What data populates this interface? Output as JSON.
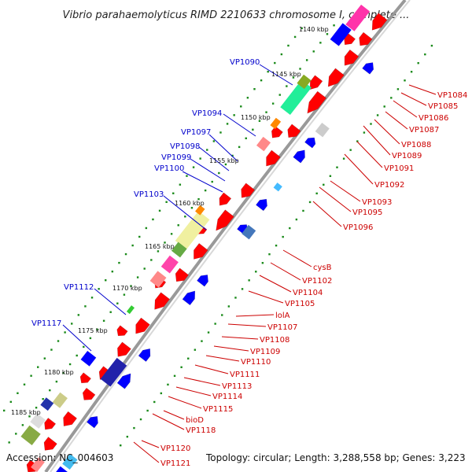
{
  "title": "Vibrio parahaemolyticus RIMD 2210633 chromosome I, complete ...",
  "footer": {
    "accession": "Accession: NC_004603",
    "topology": "Topology: circular; Length: 3,288,558 bp; Genes: 3,223"
  },
  "colors": {
    "forward_label": "#cc0000",
    "reverse_label": "#0000cc",
    "forward_gene": "#ff0000",
    "reverse_gene": "#0000ff",
    "tick": "#1a8a1a",
    "backbone": "#999999"
  },
  "ticks": [
    "1140 kbp",
    "1145 kbp",
    "1150 kbp",
    "1155 kbp",
    "1160 kbp",
    "1165 kbp",
    "1170 kbp",
    "1175 kbp",
    "1180 kbp",
    "1185 kbp"
  ],
  "reverse_labels": [
    "VP1090",
    "VP1094",
    "VP1097",
    "VP1098",
    "VP1099",
    "VP1100",
    "VP1103",
    "VP1112",
    "VP1117"
  ],
  "forward_labels": [
    "VP1084",
    "VP1085",
    "VP1086",
    "VP1087",
    "VP1088",
    "VP1089",
    "VP1091",
    "VP1092",
    "VP1093",
    "VP1095",
    "VP1096",
    "cysB",
    "VP1102",
    "VP1104",
    "VP1105",
    "lolA",
    "VP1107",
    "VP1108",
    "VP1109",
    "VP1110",
    "VP1111",
    "VP1113",
    "VP1114",
    "VP1115",
    "bioD",
    "VP1118",
    "VP1120",
    "VP1121"
  ]
}
